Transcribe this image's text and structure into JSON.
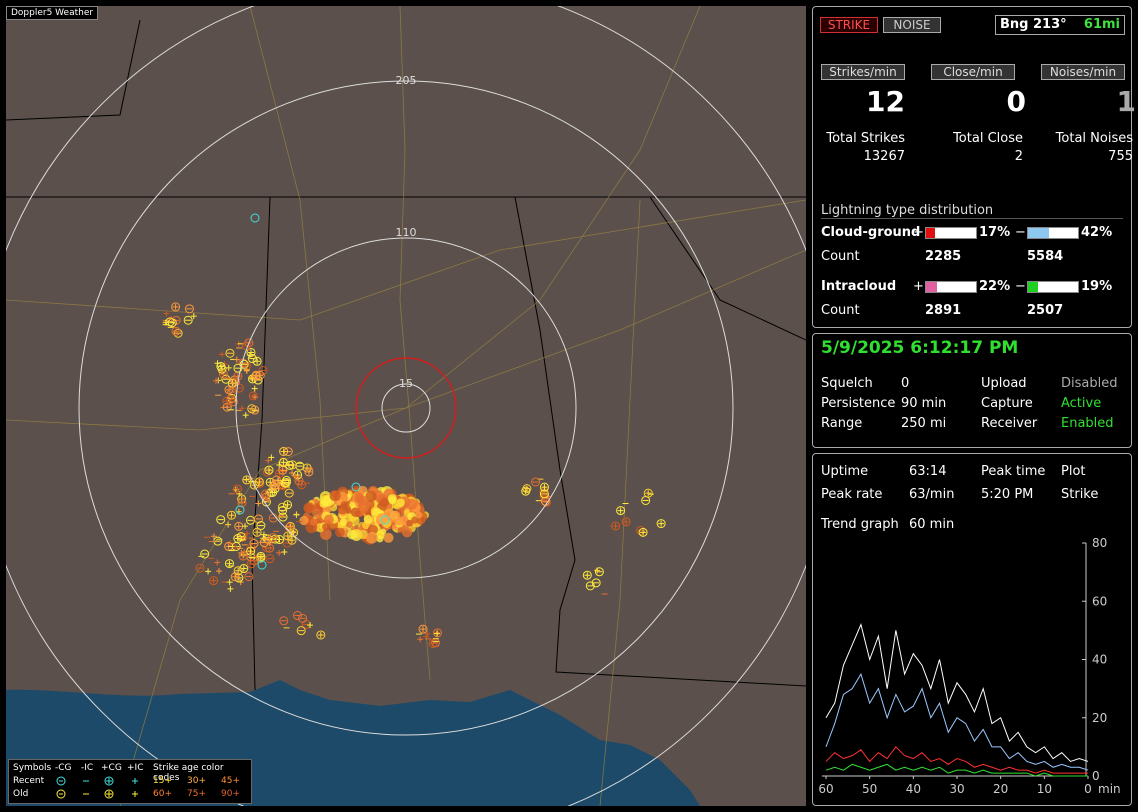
{
  "app_title": "Doppler5 Weather",
  "map": {
    "ring_labels": [
      "205",
      "110",
      "15"
    ]
  },
  "legend": {
    "symbols_label": "Symbols",
    "symbol_types": [
      "-CG",
      "-IC",
      "+CG",
      "+IC"
    ],
    "age_label": "Strike age color codes",
    "rows": [
      {
        "label": "Recent",
        "ages": [
          "15+",
          "30+",
          "45+"
        ]
      },
      {
        "label": "Old",
        "ages": [
          "60+",
          "75+",
          "90+"
        ]
      }
    ]
  },
  "status": {
    "strike_button": "STRIKE",
    "noise_button": "NOISE",
    "bearing": "Bng 213°",
    "distance": "61mi"
  },
  "rates": [
    {
      "label": "Strikes/min",
      "value": 12,
      "total_label": "Total Strikes",
      "total": 13267
    },
    {
      "label": "Close/min",
      "value": 0,
      "total_label": "Total Close",
      "total": 2
    },
    {
      "label": "Noises/min",
      "value": 1,
      "total_label": "Total Noises",
      "total": 755
    }
  ],
  "distribution": {
    "title": "Lightning type distribution",
    "count_label": "Count",
    "positive_sign": "+",
    "negative_sign": "−",
    "rows": [
      {
        "label": "Cloud-ground",
        "positive": 17,
        "positive_label": "17%",
        "negative": 42,
        "negative_label": "42%",
        "positive_count": 2285,
        "negative_count": 5584,
        "positive_color": "#e01010",
        "negative_color": "#8ec8f0"
      },
      {
        "label": "Intracloud",
        "positive": 22,
        "positive_label": "22%",
        "negative": 19,
        "negative_label": "19%",
        "positive_count": 2891,
        "negative_count": 2507,
        "positive_color": "#e060a0",
        "negative_color": "#20d020"
      }
    ]
  },
  "settings": {
    "datetime": "5/9/2025 6:12:17 PM",
    "left": [
      {
        "label": "Squelch",
        "value": "0"
      },
      {
        "label": "Persistence",
        "value": "90 min"
      },
      {
        "label": "Range",
        "value": "250 mi"
      }
    ],
    "right": [
      {
        "label": "Upload",
        "value": "Disabled"
      },
      {
        "label": "Capture",
        "value": "Active"
      },
      {
        "label": "Receiver",
        "value": "Enabled"
      }
    ]
  },
  "stats": {
    "uptime_label": "Uptime",
    "uptime": "63:14",
    "peak_rate_label": "Peak rate",
    "peak_rate": "63/min",
    "peak_time_label": "Peak time",
    "peak_time": "5:20 PM",
    "plot_label": "Plot",
    "plot": "Strike",
    "trend_label": "Trend graph",
    "trend": "60 min"
  },
  "trend": {
    "type": "line",
    "x_unit": "min",
    "xlim": [
      60,
      0
    ],
    "xticks": [
      60,
      50,
      40,
      30,
      20,
      10,
      0
    ],
    "ylim": [
      0,
      80
    ],
    "yticks": [
      80,
      60,
      40,
      20,
      0
    ],
    "x": [
      60,
      58,
      56,
      54,
      52,
      50,
      48,
      46,
      44,
      42,
      40,
      38,
      36,
      34,
      32,
      30,
      28,
      26,
      24,
      22,
      20,
      18,
      16,
      14,
      12,
      10,
      8,
      6,
      4,
      2,
      0
    ],
    "series": [
      {
        "color": "#ffffff",
        "values": [
          20,
          25,
          38,
          45,
          52,
          40,
          48,
          30,
          50,
          35,
          42,
          38,
          30,
          40,
          25,
          32,
          28,
          22,
          30,
          18,
          20,
          12,
          15,
          10,
          8,
          10,
          6,
          8,
          5,
          6,
          5
        ]
      },
      {
        "color": "#9cc8ff",
        "values": [
          10,
          18,
          28,
          30,
          35,
          25,
          30,
          20,
          28,
          22,
          24,
          30,
          20,
          25,
          15,
          20,
          18,
          12,
          16,
          10,
          10,
          6,
          8,
          5,
          4,
          5,
          3,
          4,
          3,
          3,
          2
        ]
      },
      {
        "color": "#ff3030",
        "values": [
          5,
          8,
          6,
          7,
          9,
          5,
          8,
          6,
          10,
          7,
          6,
          8,
          5,
          6,
          4,
          6,
          5,
          3,
          4,
          3,
          2,
          3,
          2,
          2,
          1,
          2,
          1,
          1,
          1,
          1,
          1
        ]
      },
      {
        "color": "#30e030",
        "values": [
          2,
          3,
          2,
          4,
          3,
          2,
          3,
          4,
          2,
          3,
          2,
          3,
          2,
          3,
          1,
          2,
          2,
          1,
          2,
          1,
          1,
          1,
          1,
          1,
          0,
          1,
          0,
          0,
          0,
          0,
          0
        ]
      }
    ]
  }
}
